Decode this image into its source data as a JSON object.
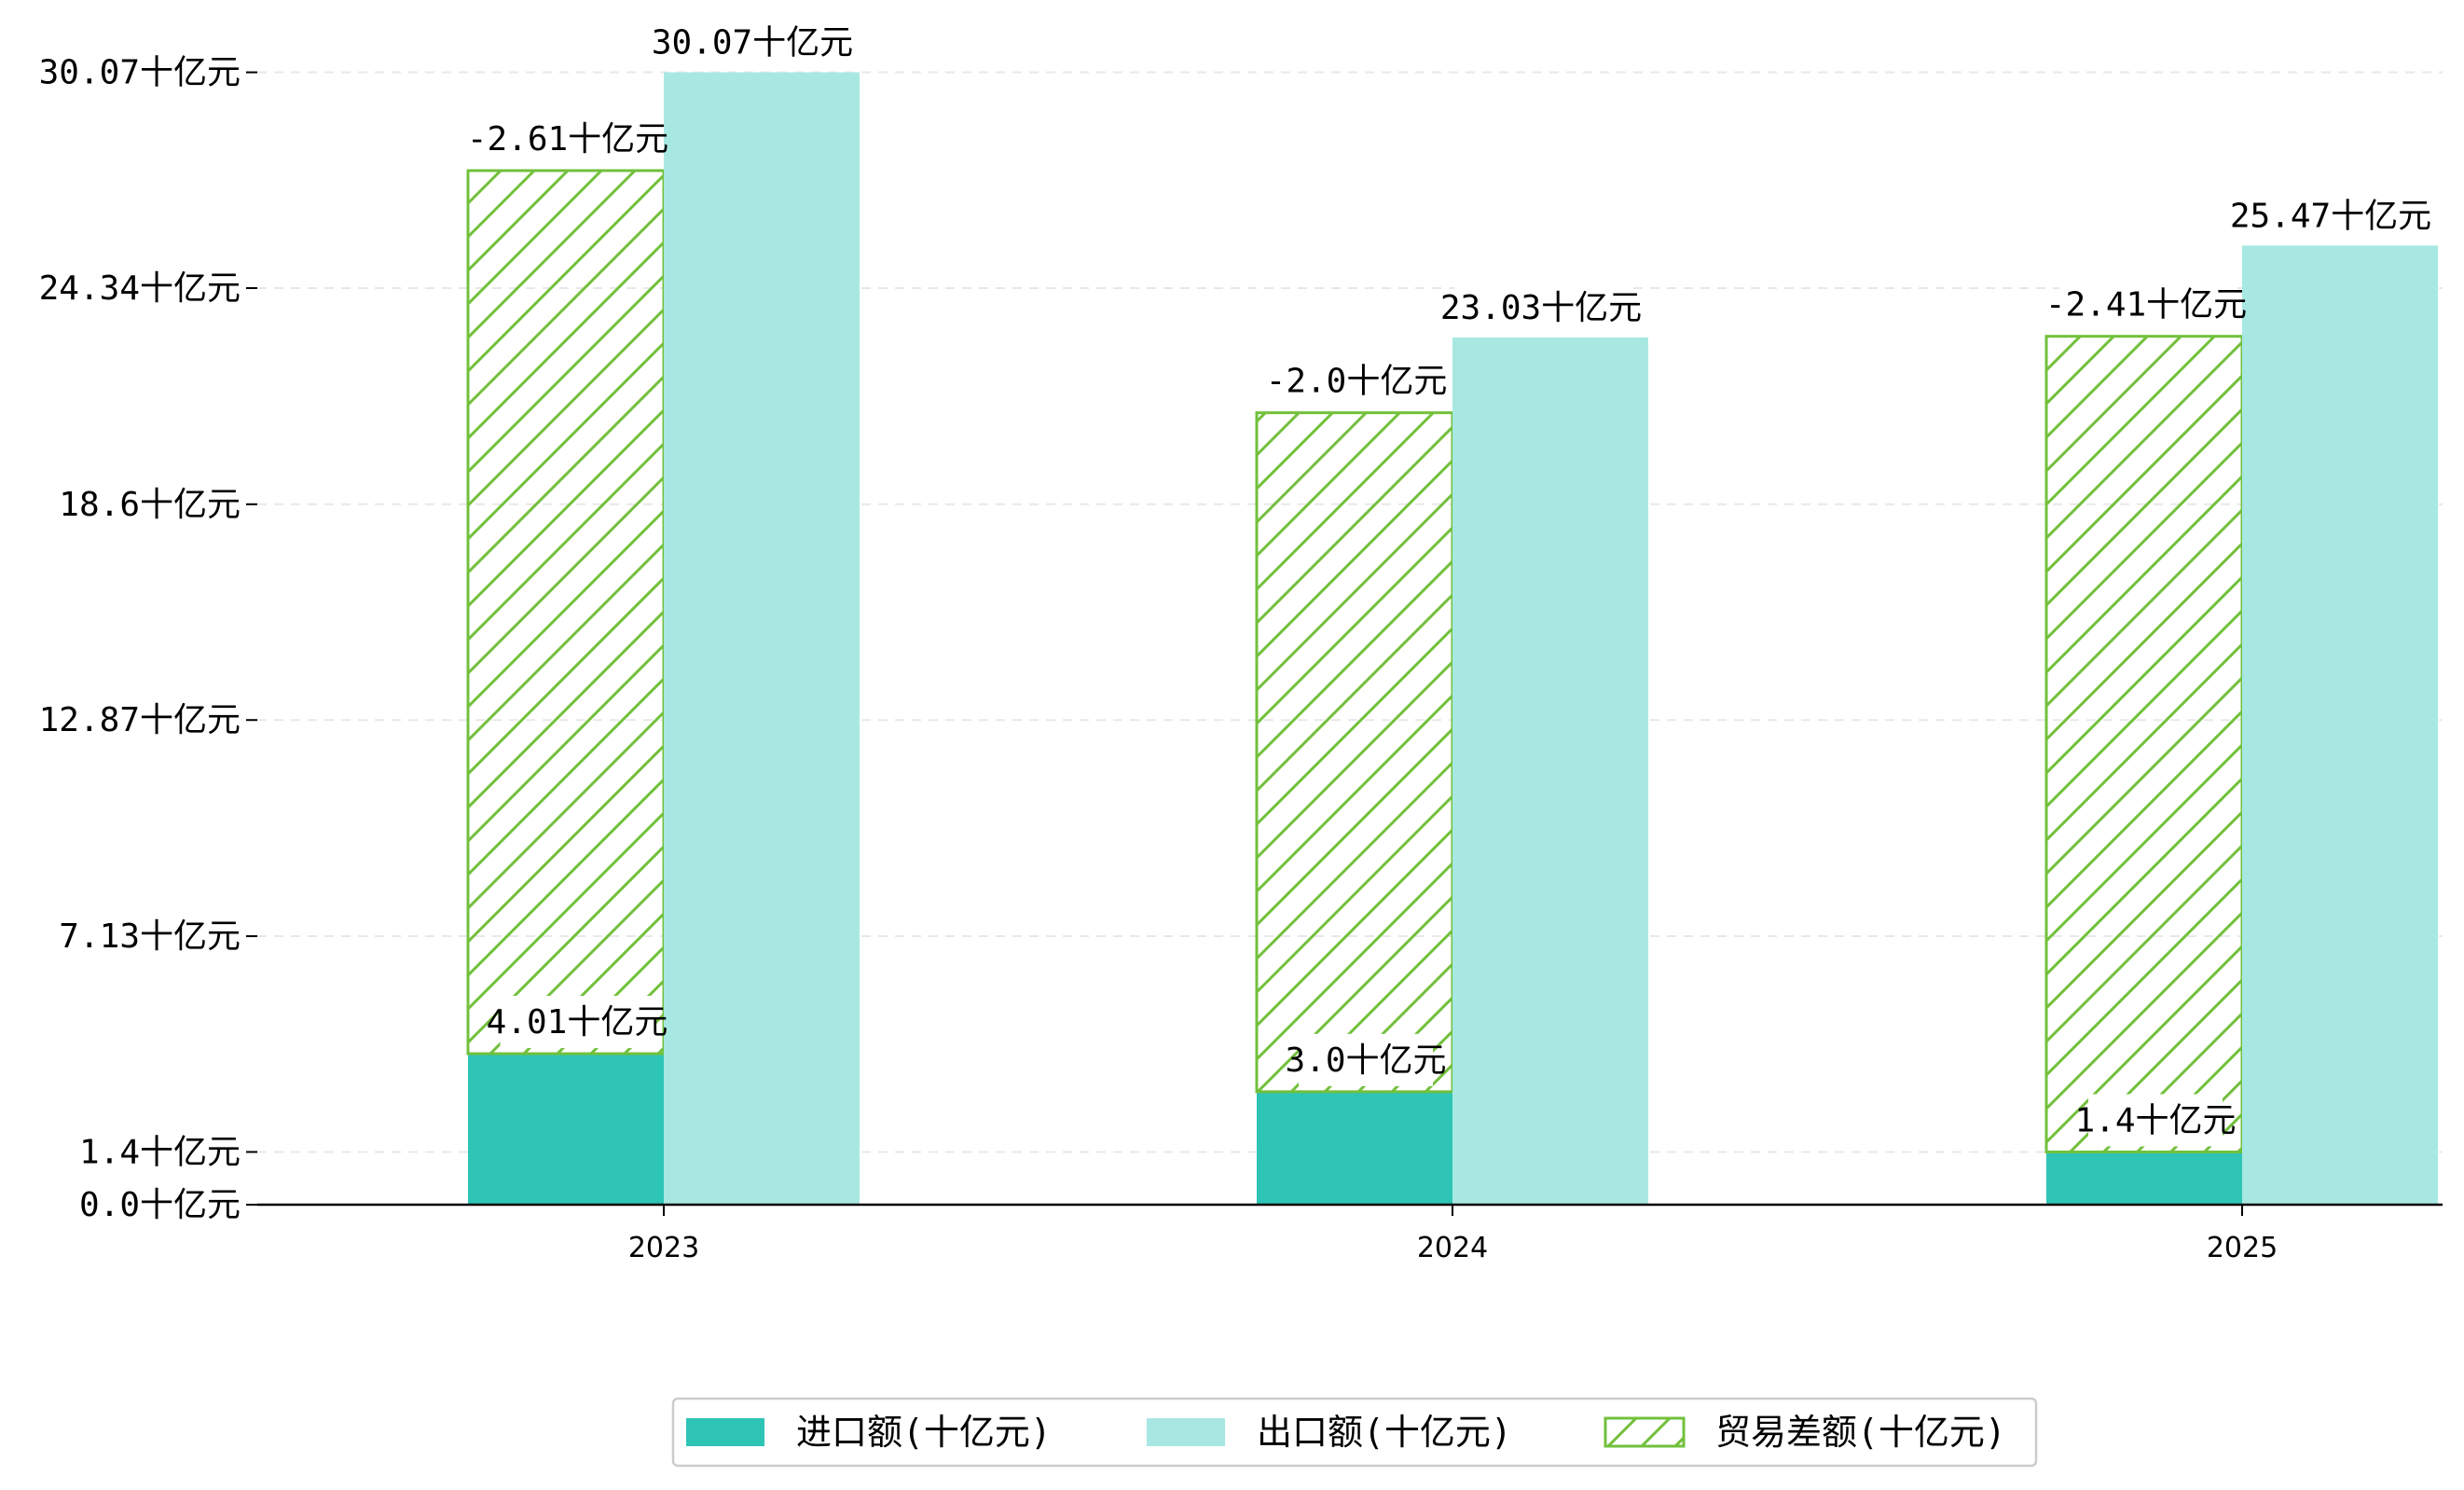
{
  "chart_data": {
    "type": "bar",
    "categories": [
      "2023",
      "2024",
      "2025"
    ],
    "series": [
      {
        "name": "进口额(十亿元)",
        "values": [
          4.01,
          3.0,
          1.4
        ],
        "color": "#2ec4b6",
        "style": "solid"
      },
      {
        "name": "出口额(十亿元)",
        "values": [
          30.07,
          23.03,
          25.47
        ],
        "color": "#a8e8e2",
        "style": "solid"
      },
      {
        "name": "贸易差额(十亿元)",
        "values": [
          -2.61,
          -2.0,
          -2.41
        ],
        "color": "#72c03c",
        "style": "hatched"
      }
    ],
    "stacked_note_values": [
      30.07,
      23.03,
      25.47
    ],
    "data_labels": {
      "imports": [
        "4.01十亿元",
        "3.0十亿元",
        "1.4十亿元"
      ],
      "exports": [
        "30.07十亿元",
        "23.03十亿元",
        "25.47十亿元"
      ],
      "balance": [
        "-2.61十亿元",
        "-2.0十亿元",
        "-2.41十亿元"
      ]
    },
    "y_ticks": [
      0.0,
      1.4,
      7.13,
      12.87,
      18.6,
      24.34,
      30.07
    ],
    "y_tick_labels": [
      "0.0十亿元",
      "1.4十亿元",
      "7.13十亿元",
      "12.87十亿元",
      "18.6十亿元",
      "24.34十亿元",
      "30.07十亿元"
    ],
    "ylim": [
      0,
      31.0
    ],
    "grid": true,
    "legend_position": "bottom-center",
    "xlabel": "",
    "ylabel": "",
    "title": ""
  }
}
